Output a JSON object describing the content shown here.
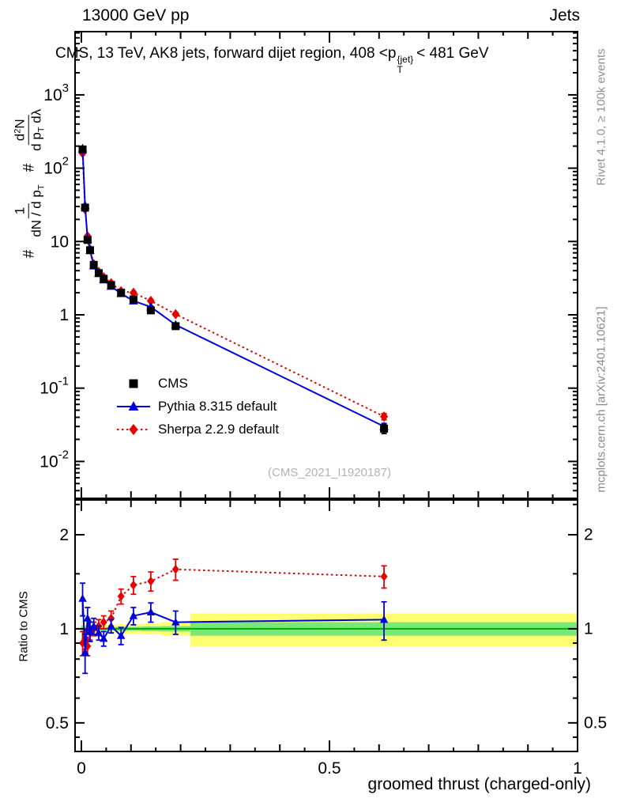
{
  "header": {
    "left_label": "13000 GeV pp",
    "right_label": "Jets"
  },
  "title": {
    "pre": "CMS, 13 TeV, AK8 jets, forward dijet region, 408 <",
    "symbol": "p",
    "sup": "{jet}",
    "sub": "T",
    "post": "< 481 GeV"
  },
  "ylabel_main": {
    "hash1": "#",
    "frac1_num": "1",
    "frac1_den": "dN / d p",
    "frac1_den_sub": "T",
    "hash2": "#",
    "frac2_num_base": "d",
    "frac2_num_exp": "2",
    "frac2_num_post": "N",
    "frac2_den": "d p",
    "frac2_den_sub": "T",
    "frac2_den_post": " dλ"
  },
  "ylabel_ratio": "Ratio to CMS",
  "xlabel": "groomed thrust (charged-only)",
  "watermark": "(CMS_2021_I1920187)",
  "side_notes": {
    "top_right": "Rivet 4.1.0, ≥ 100k events",
    "bottom_right": "mcplots.cern.ch [arXiv:2401.10621]"
  },
  "colors": {
    "cms": "#000000",
    "pythia": "#0000dd",
    "sherpa": "#e60000",
    "band_yellow": "#ffff70",
    "band_green": "#79e879",
    "ref_line": "#00aa00"
  },
  "legend": [
    {
      "label": "CMS",
      "marker": "square",
      "color": "#000000",
      "line": "none"
    },
    {
      "label": "Pythia 8.315 default",
      "marker": "triangle",
      "color": "#0000dd",
      "line": "solid"
    },
    {
      "label": "Sherpa 2.2.9 default",
      "marker": "diamond",
      "color": "#e60000",
      "line": "dotted"
    }
  ],
  "chart_data": [
    {
      "panel": "main",
      "type": "line",
      "title": "CMS, 13 TeV, AK8 jets, forward dijet region, 408 < pT{jet} < 481 GeV",
      "xlabel": "groomed thrust (charged-only)",
      "ylabel": "(1 / dN/dpT) d2N/(dpT dλ)",
      "xscale": "linear",
      "yscale": "log",
      "xlim": [
        -0.0127,
        1.0
      ],
      "ylim": [
        0.00314,
        7280
      ],
      "grid": false,
      "legend_position": "upper-left-inside",
      "marker_size": 10,
      "log_minor": true,
      "xticks": {
        "values": [
          0,
          0.5,
          1
        ],
        "labels": [
          "0",
          "0.5",
          "1"
        ],
        "show_labels": false
      },
      "yticks": [
        {
          "value": 1000,
          "base": "10",
          "exp": "3"
        },
        {
          "value": 100,
          "base": "10",
          "exp": "2"
        },
        {
          "value": 10,
          "base": "10"
        },
        {
          "value": 1,
          "base": "1"
        },
        {
          "value": 0.1,
          "base": "10",
          "exp": "-1"
        },
        {
          "value": 0.01,
          "base": "10",
          "exp": "-2"
        }
      ],
      "x": [
        0.0025,
        0.0075,
        0.0125,
        0.0175,
        0.025,
        0.035,
        0.045,
        0.06,
        0.08,
        0.105,
        0.14,
        0.19,
        0.61
      ],
      "bin_edges": [
        0,
        0.005,
        0.01,
        0.015,
        0.02,
        0.03,
        0.04,
        0.05,
        0.07,
        0.09,
        0.12,
        0.16,
        0.22,
        1.0
      ],
      "series": [
        {
          "name": "CMS",
          "marker": "square",
          "color": "#000000",
          "line": "none",
          "y": [
            180,
            29,
            10.5,
            7.6,
            4.8,
            3.7,
            3.1,
            2.55,
            2.0,
            1.62,
            1.15,
            0.7,
            0.028
          ],
          "yerr": [
            12,
            2,
            0.5,
            0.35,
            0.2,
            0.15,
            0.12,
            0.1,
            0.08,
            0.07,
            0.06,
            0.04,
            0.004
          ]
        },
        {
          "name": "Pythia 8.315 default",
          "marker": "triangle",
          "color": "#0000dd",
          "line": "solid",
          "y": [
            185,
            31,
            10.8,
            7.6,
            4.65,
            3.7,
            3.0,
            2.45,
            1.95,
            1.55,
            1.28,
            0.73,
            0.03
          ],
          "yerr": [
            6,
            1,
            0.3,
            0.2,
            0.12,
            0.1,
            0.08,
            0.06,
            0.05,
            0.05,
            0.04,
            0.03,
            0.003
          ]
        },
        {
          "name": "Sherpa 2.2.9 default",
          "marker": "diamond",
          "color": "#e60000",
          "line": "dotted",
          "y": [
            160,
            27.5,
            11.8,
            7.8,
            4.9,
            3.85,
            3.25,
            2.7,
            2.1,
            2.0,
            1.55,
            1.02,
            0.041
          ],
          "yerr": [
            8,
            1.2,
            0.4,
            0.25,
            0.15,
            0.12,
            0.1,
            0.08,
            0.07,
            0.07,
            0.06,
            0.05,
            0.004
          ]
        }
      ]
    },
    {
      "panel": "ratio",
      "type": "line",
      "title": "Ratio to CMS",
      "xscale": "linear",
      "yscale": "log",
      "xlim": [
        -0.0127,
        1.0
      ],
      "ylim": [
        0.405,
        2.585
      ],
      "marker_size": 9,
      "reference_line": 1,
      "xticks": {
        "values": [
          0,
          0.5,
          1
        ],
        "labels": [
          "0",
          "0.5",
          "1"
        ],
        "show_labels": true
      },
      "yticks": [
        {
          "value": 2,
          "base": "2"
        },
        {
          "value": 1,
          "base": "1"
        },
        {
          "value": 0.5,
          "base": "0.5"
        }
      ],
      "yticks_minor": [
        0.45,
        0.6,
        0.7,
        0.8,
        0.9,
        1.5,
        2.5
      ],
      "ytick_labels_both_sides": true,
      "x": [
        0.0025,
        0.0075,
        0.0125,
        0.0175,
        0.025,
        0.035,
        0.045,
        0.06,
        0.08,
        0.105,
        0.14,
        0.19,
        0.61
      ],
      "bands": {
        "bin_edges": [
          0,
          0.005,
          0.01,
          0.015,
          0.02,
          0.03,
          0.04,
          0.05,
          0.07,
          0.09,
          0.12,
          0.16,
          0.22,
          1.0
        ],
        "yellow_half": [
          0.06,
          0.05,
          0.04,
          0.035,
          0.03,
          0.03,
          0.03,
          0.03,
          0.035,
          0.035,
          0.04,
          0.05,
          0.12
        ],
        "green_half": [
          0.025,
          0.02,
          0.017,
          0.015,
          0.013,
          0.013,
          0.013,
          0.013,
          0.015,
          0.015,
          0.017,
          0.02,
          0.05
        ]
      },
      "series": [
        {
          "name": "Pythia 8.315 default / CMS",
          "marker": "triangle",
          "color": "#0000dd",
          "line": "solid",
          "y": [
            1.25,
            0.84,
            1.08,
            0.98,
            1.02,
            0.97,
            0.93,
            1.02,
            0.95,
            1.1,
            1.13,
            1.05,
            1.07
          ],
          "yerr": [
            0.15,
            0.12,
            0.09,
            0.07,
            0.06,
            0.05,
            0.05,
            0.05,
            0.06,
            0.07,
            0.08,
            0.09,
            0.15
          ]
        },
        {
          "name": "Sherpa 2.2.9 default / CMS",
          "marker": "diamond",
          "color": "#e60000",
          "line": "dotted",
          "y": [
            0.9,
            0.93,
            0.88,
            0.97,
            1.0,
            1.02,
            1.05,
            1.08,
            1.27,
            1.38,
            1.42,
            1.55,
            1.47
          ],
          "yerr": [
            0.08,
            0.07,
            0.06,
            0.05,
            0.05,
            0.05,
            0.05,
            0.06,
            0.07,
            0.09,
            0.1,
            0.12,
            0.12
          ]
        }
      ]
    }
  ]
}
